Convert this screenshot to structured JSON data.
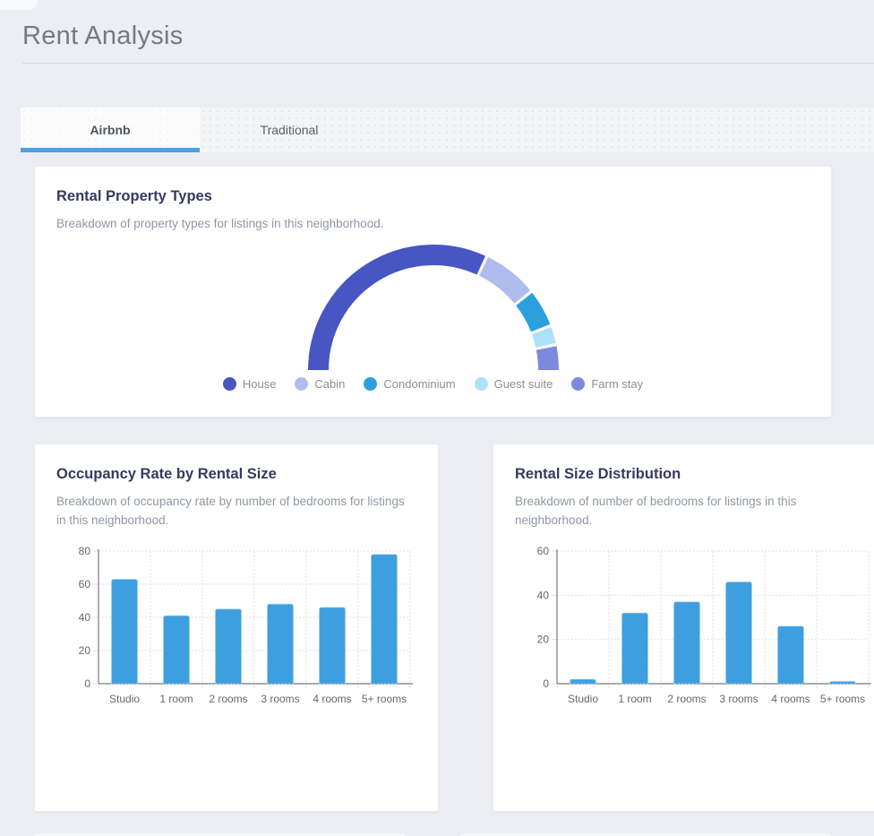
{
  "page": {
    "title": "Rent Analysis"
  },
  "tabs": [
    {
      "label": "Airbnb",
      "active": true
    },
    {
      "label": "Traditional",
      "active": false
    }
  ],
  "colors": {
    "accent_blue": "#4ba4e0",
    "bar_blue": "#3d9fe0",
    "card_title": "#363a5e",
    "subtitle_gray": "#9297a3",
    "axis_gray": "#8e8f93",
    "grid_gray": "#e1e2e7",
    "tick_label_gray": "#66686c"
  },
  "chart_data": [
    {
      "type": "pie",
      "variant": "half-donut",
      "title": "Rental Property Types",
      "subtitle": "Breakdown of property types for listings in this neighborhood.",
      "labels": [
        "House",
        "Cabin",
        "Condominium",
        "Guest suite",
        "Farm stay"
      ],
      "values": [
        64,
        14.5,
        10,
        5,
        6.5
      ],
      "unit": "percent-of-listings",
      "colors": [
        "#4756c3",
        "#b0bcee",
        "#2ba0de",
        "#aee0f9",
        "#7d89dd"
      ],
      "legend_position": "bottom"
    },
    {
      "type": "bar",
      "title": "Occupancy Rate by Rental Size",
      "subtitle": "Breakdown of occupancy rate by number of bedrooms for listings in this neighborhood.",
      "categories": [
        "Studio",
        "1 room",
        "2 rooms",
        "3 rooms",
        "4 rooms",
        "5+ rooms"
      ],
      "values": [
        63,
        41,
        45,
        48,
        46,
        78
      ],
      "ylim": [
        0,
        80
      ],
      "yticks": [
        0,
        20,
        40,
        60,
        80
      ],
      "grid": true,
      "legend_position": "none",
      "bar_color": "#3d9fe0"
    },
    {
      "type": "bar",
      "title": "Rental Size Distribution",
      "subtitle": "Breakdown of number of bedrooms for listings in this neighborhood.",
      "categories": [
        "Studio",
        "1 room",
        "2 rooms",
        "3 rooms",
        "4 rooms",
        "5+ rooms"
      ],
      "values": [
        2,
        32,
        37,
        46,
        26,
        1
      ],
      "ylim": [
        0,
        60
      ],
      "yticks": [
        0,
        20,
        40,
        60
      ],
      "grid": true,
      "legend_position": "none",
      "bar_color": "#3d9fe0"
    }
  ]
}
